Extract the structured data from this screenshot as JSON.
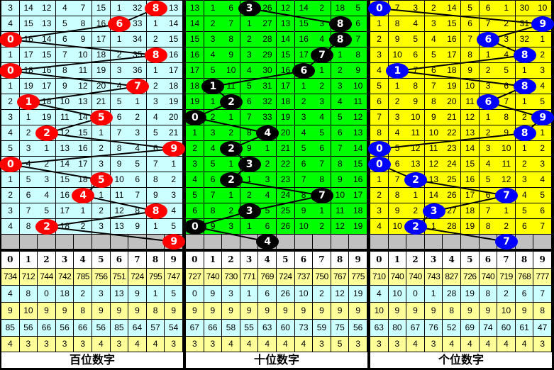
{
  "column_headers": [
    "0",
    "1",
    "2",
    "3",
    "4",
    "5",
    "6",
    "7",
    "8",
    "9"
  ],
  "colors": {
    "line": "#000000",
    "gray_row": "#c0c0c0",
    "stat_yellow": "#ffff99",
    "stat_cyan": "#ccffff"
  },
  "panels": [
    {
      "label": "百位数字",
      "grid_color": "#ccffff",
      "ball_color": "#ff0000",
      "rows": [
        {
          "digit": 8,
          "cells": [
            3,
            14,
            12,
            4,
            7,
            15,
            1,
            32,
            null,
            13
          ]
        },
        {
          "digit": 6,
          "cells": [
            4,
            15,
            13,
            5,
            8,
            16,
            null,
            33,
            1,
            14
          ]
        },
        {
          "digit": 0,
          "cells": [
            null,
            16,
            14,
            6,
            9,
            17,
            1,
            34,
            2,
            15
          ]
        },
        {
          "digit": 8,
          "cells": [
            1,
            17,
            15,
            7,
            10,
            18,
            2,
            35,
            null,
            16
          ]
        },
        {
          "digit": 0,
          "cells": [
            null,
            18,
            16,
            8,
            11,
            19,
            3,
            36,
            1,
            17
          ]
        },
        {
          "digit": 7,
          "cells": [
            1,
            19,
            17,
            9,
            12,
            20,
            4,
            null,
            2,
            18
          ]
        },
        {
          "digit": 1,
          "cells": [
            2,
            null,
            18,
            10,
            13,
            21,
            5,
            1,
            3,
            19
          ]
        },
        {
          "digit": 5,
          "cells": [
            3,
            1,
            19,
            11,
            14,
            null,
            6,
            2,
            4,
            20
          ]
        },
        {
          "digit": 2,
          "cells": [
            4,
            2,
            null,
            12,
            15,
            1,
            7,
            3,
            5,
            21
          ]
        },
        {
          "digit": 9,
          "cells": [
            5,
            3,
            1,
            13,
            16,
            2,
            8,
            4,
            6,
            null
          ]
        },
        {
          "digit": 0,
          "cells": [
            null,
            4,
            2,
            14,
            17,
            3,
            9,
            5,
            7,
            1
          ]
        },
        {
          "digit": 5,
          "cells": [
            1,
            5,
            3,
            15,
            18,
            null,
            10,
            6,
            8,
            2
          ]
        },
        {
          "digit": 4,
          "cells": [
            2,
            6,
            4,
            16,
            null,
            1,
            11,
            7,
            9,
            3
          ]
        },
        {
          "digit": 8,
          "cells": [
            3,
            7,
            5,
            17,
            1,
            2,
            12,
            8,
            null,
            4
          ]
        },
        {
          "digit": 2,
          "cells": [
            4,
            8,
            null,
            18,
            2,
            3,
            13,
            9,
            1,
            5
          ]
        }
      ],
      "next_digit": 9,
      "stats": [
        [
          "734",
          "712",
          "744",
          "742",
          "785",
          "756",
          "751",
          "724",
          "795",
          "747"
        ],
        [
          "4",
          "8",
          "0",
          "18",
          "2",
          "3",
          "13",
          "9",
          "1",
          "5"
        ],
        [
          "9",
          "10",
          "9",
          "9",
          "8",
          "9",
          "9",
          "9",
          "8",
          "9"
        ],
        [
          "85",
          "56",
          "66",
          "56",
          "66",
          "56",
          "85",
          "64",
          "57",
          "54"
        ],
        [
          "4",
          "3",
          "3",
          "3",
          "3",
          "4",
          "3",
          "4",
          "4",
          "3"
        ]
      ]
    },
    {
      "label": "十位数字",
      "grid_color": "#00ff00",
      "ball_color": "#000000",
      "rows": [
        {
          "digit": 3,
          "cells": [
            13,
            1,
            6,
            null,
            26,
            12,
            14,
            2,
            18,
            5
          ]
        },
        {
          "digit": 8,
          "cells": [
            14,
            2,
            7,
            1,
            27,
            13,
            15,
            3,
            null,
            6
          ]
        },
        {
          "digit": 8,
          "cells": [
            15,
            3,
            8,
            2,
            28,
            14,
            16,
            4,
            null,
            7
          ]
        },
        {
          "digit": 7,
          "cells": [
            16,
            4,
            9,
            3,
            29,
            15,
            17,
            null,
            1,
            8
          ]
        },
        {
          "digit": 6,
          "cells": [
            17,
            5,
            10,
            4,
            30,
            16,
            null,
            1,
            2,
            9
          ]
        },
        {
          "digit": 1,
          "cells": [
            18,
            null,
            11,
            5,
            31,
            17,
            1,
            2,
            3,
            10
          ]
        },
        {
          "digit": 2,
          "cells": [
            19,
            1,
            null,
            6,
            32,
            18,
            2,
            3,
            4,
            11
          ]
        },
        {
          "digit": 0,
          "cells": [
            null,
            2,
            1,
            7,
            33,
            19,
            3,
            4,
            5,
            12
          ]
        },
        {
          "digit": 4,
          "cells": [
            1,
            3,
            2,
            8,
            null,
            20,
            4,
            5,
            6,
            13
          ]
        },
        {
          "digit": 2,
          "cells": [
            2,
            4,
            null,
            9,
            1,
            21,
            5,
            6,
            7,
            14
          ]
        },
        {
          "digit": 3,
          "cells": [
            3,
            5,
            1,
            null,
            2,
            22,
            6,
            7,
            8,
            15
          ]
        },
        {
          "digit": 2,
          "cells": [
            4,
            6,
            null,
            1,
            3,
            23,
            7,
            8,
            9,
            16
          ]
        },
        {
          "digit": 7,
          "cells": [
            5,
            7,
            1,
            2,
            4,
            24,
            8,
            null,
            10,
            17
          ]
        },
        {
          "digit": 3,
          "cells": [
            6,
            8,
            2,
            null,
            5,
            25,
            9,
            1,
            11,
            18
          ]
        },
        {
          "digit": 0,
          "cells": [
            null,
            9,
            3,
            1,
            6,
            26,
            10,
            2,
            12,
            19
          ]
        }
      ],
      "next_digit": 4,
      "stats": [
        [
          "727",
          "740",
          "730",
          "771",
          "769",
          "724",
          "737",
          "750",
          "767",
          "775"
        ],
        [
          "0",
          "9",
          "3",
          "1",
          "6",
          "26",
          "10",
          "2",
          "12",
          "19"
        ],
        [
          "9",
          "9",
          "9",
          "9",
          "9",
          "9",
          "9",
          "9",
          "9",
          "9"
        ],
        [
          "67",
          "66",
          "58",
          "55",
          "63",
          "60",
          "73",
          "59",
          "75",
          "56"
        ],
        [
          "3",
          "3",
          "4",
          "4",
          "4",
          "4",
          "4",
          "3",
          "5",
          "3"
        ]
      ]
    },
    {
      "label": "个位数字",
      "grid_color": "#ffff00",
      "ball_color": "#0000ff",
      "rows": [
        {
          "digit": 0,
          "cells": [
            null,
            7,
            3,
            2,
            14,
            5,
            6,
            1,
            30,
            10
          ]
        },
        {
          "digit": 9,
          "cells": [
            1,
            8,
            4,
            3,
            15,
            6,
            7,
            2,
            31,
            null
          ]
        },
        {
          "digit": 6,
          "cells": [
            2,
            9,
            5,
            4,
            16,
            7,
            null,
            3,
            32,
            1
          ]
        },
        {
          "digit": 8,
          "cells": [
            3,
            10,
            6,
            5,
            17,
            8,
            1,
            4,
            null,
            2
          ]
        },
        {
          "digit": 1,
          "cells": [
            4,
            null,
            7,
            6,
            18,
            9,
            2,
            5,
            1,
            3
          ]
        },
        {
          "digit": 8,
          "cells": [
            5,
            1,
            8,
            7,
            19,
            10,
            3,
            6,
            null,
            4
          ]
        },
        {
          "digit": 6,
          "cells": [
            6,
            2,
            9,
            8,
            20,
            11,
            null,
            7,
            1,
            5
          ]
        },
        {
          "digit": 9,
          "cells": [
            7,
            3,
            10,
            9,
            21,
            12,
            1,
            8,
            2,
            null
          ]
        },
        {
          "digit": 8,
          "cells": [
            8,
            4,
            11,
            10,
            22,
            13,
            2,
            9,
            null,
            1
          ]
        },
        {
          "digit": 0,
          "cells": [
            null,
            5,
            12,
            11,
            23,
            14,
            3,
            10,
            1,
            2
          ]
        },
        {
          "digit": 0,
          "cells": [
            null,
            6,
            13,
            12,
            24,
            15,
            4,
            11,
            2,
            3
          ]
        },
        {
          "digit": 2,
          "cells": [
            1,
            7,
            null,
            13,
            25,
            16,
            5,
            12,
            3,
            4
          ]
        },
        {
          "digit": 7,
          "cells": [
            2,
            8,
            1,
            14,
            26,
            17,
            6,
            null,
            4,
            5
          ]
        },
        {
          "digit": 3,
          "cells": [
            3,
            9,
            2,
            null,
            27,
            18,
            7,
            1,
            5,
            6
          ]
        },
        {
          "digit": 2,
          "cells": [
            4,
            10,
            null,
            1,
            28,
            19,
            8,
            2,
            6,
            7
          ]
        }
      ],
      "next_digit": 7,
      "stats": [
        [
          "710",
          "740",
          "740",
          "743",
          "827",
          "726",
          "740",
          "719",
          "768",
          "777"
        ],
        [
          "4",
          "10",
          "0",
          "1",
          "28",
          "19",
          "8",
          "2",
          "6",
          "7"
        ],
        [
          "10",
          "9",
          "9",
          "9",
          "8",
          "9",
          "9",
          "10",
          "9",
          "8"
        ],
        [
          "63",
          "80",
          "67",
          "76",
          "52",
          "69",
          "74",
          "60",
          "61",
          "47"
        ],
        [
          "3",
          "3",
          "4",
          "3",
          "4",
          "4",
          "4",
          "4",
          "4",
          "3"
        ]
      ]
    }
  ]
}
